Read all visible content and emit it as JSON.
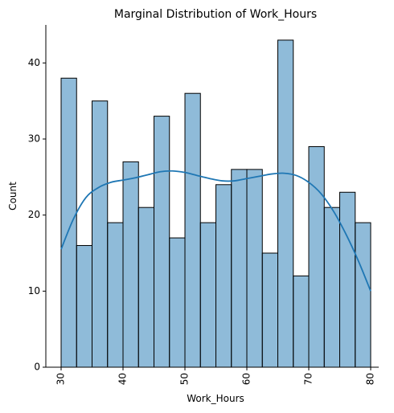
{
  "chart_data": {
    "type": "bar",
    "title": "Marginal Distribution of Work_Hours",
    "xlabel": "Work_Hours",
    "ylabel": "Count",
    "xlim": [
      30,
      80
    ],
    "ylim": [
      0,
      45
    ],
    "bin_edges": [
      30,
      32.5,
      35,
      37.5,
      40,
      42.5,
      45,
      47.5,
      50,
      52.5,
      55,
      57.5,
      60,
      62.5,
      65,
      67.5,
      70,
      72.5,
      75,
      77.5,
      80
    ],
    "values": [
      38,
      16,
      35,
      19,
      27,
      21,
      33,
      17,
      36,
      19,
      24,
      26,
      26,
      15,
      43,
      12,
      29,
      21,
      23,
      19
    ],
    "xticks": [
      30,
      40,
      50,
      60,
      70,
      80
    ],
    "yticks": [
      0,
      10,
      20,
      30,
      40
    ],
    "grid": false,
    "kde": {
      "x": [
        30,
        32,
        34,
        36,
        38,
        40,
        42,
        44,
        46,
        48,
        50,
        52,
        54,
        56,
        58,
        60,
        62,
        64,
        66,
        68,
        70,
        72,
        74,
        76,
        78,
        80
      ],
      "y": [
        15.5,
        19.5,
        22.3,
        23.6,
        24.3,
        24.6,
        24.9,
        25.3,
        25.7,
        25.8,
        25.6,
        25.2,
        24.8,
        24.5,
        24.5,
        24.8,
        25.1,
        25.4,
        25.5,
        25.2,
        24.3,
        22.8,
        20.5,
        17.5,
        14.0,
        10.0
      ]
    },
    "colors": {
      "bar": "#1f77b4",
      "edge": "#000000",
      "kde": "#1f77b4"
    }
  }
}
